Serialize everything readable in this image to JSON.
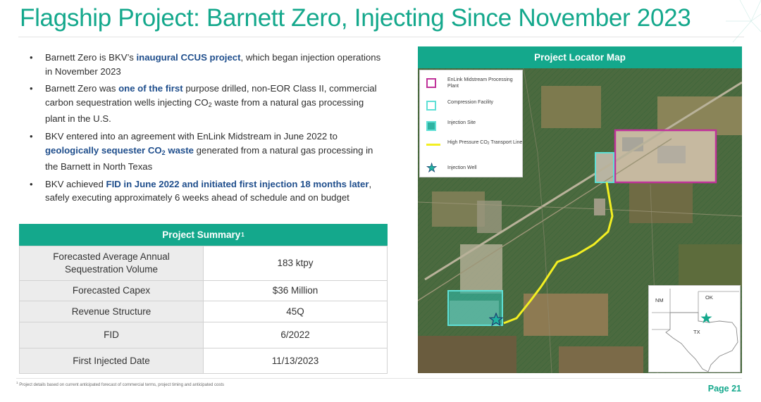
{
  "title": "Flagship Project: Barnett Zero, Injecting Since November 2023",
  "bullets": [
    {
      "pre": "Barnett Zero is BKV’s ",
      "hl": "inaugural CCUS project",
      "post": ", which began injection operations in November 2023"
    },
    {
      "pre": "Barnett Zero was ",
      "hl": "one of the first",
      "post_a": " purpose drilled, non-EOR Class II, commercial carbon sequestration wells injecting CO",
      "post_sub": "2",
      "post_b": " waste from a natural gas processing plant in the U.S."
    },
    {
      "pre": "BKV entered into an agreement with EnLink Midstream in June 2022 to ",
      "hl": "geologically sequester CO",
      "hl_sub": "2",
      "hl_b": " waste",
      "post": " generated from a natural gas processing in the Barnett in North Texas"
    },
    {
      "pre": "BKV achieved ",
      "hl": "FID in June 2022 and initiated first injection 18 months later",
      "post": ", safely executing approximately 6 weeks ahead of schedule and on budget"
    }
  ],
  "summary": {
    "header": "Project Summary",
    "header_sup": "1",
    "rows": [
      {
        "label": "Forecasted Average Annual Sequestration Volume",
        "value": "183 ktpy"
      },
      {
        "label": "Forecasted Capex",
        "value": "$36 Million"
      },
      {
        "label": "Revenue Structure",
        "value": "45Q"
      },
      {
        "label": "FID",
        "value": "6/2022"
      },
      {
        "label": "First Injected Date",
        "value": "11/13/2023"
      }
    ]
  },
  "map": {
    "header": "Project Locator Map",
    "legend": {
      "plant": "EnLink Midstream Processing Plant",
      "compression": "Compression Facility",
      "injection_site": "Injection Site",
      "pipeline_pre": "High Pressure CO",
      "pipeline_sub": "2",
      "pipeline_post": " Transport Line",
      "well": "Injection Well"
    },
    "inset": {
      "nm": "NM",
      "ok": "OK",
      "tx": "TX"
    },
    "colors": {
      "plant": "#c0339a",
      "compression": "#5fe0d6",
      "injection_site": "#2fb3a2",
      "pipeline": "#f3ef22",
      "well_star": "#1fb3a0",
      "accent": "#14a88c"
    }
  },
  "footnote": {
    "sup": "1",
    "text": "Project details based on current anticipated forecast of commercial terms, project timing and anticipated costs"
  },
  "page": "Page 21"
}
